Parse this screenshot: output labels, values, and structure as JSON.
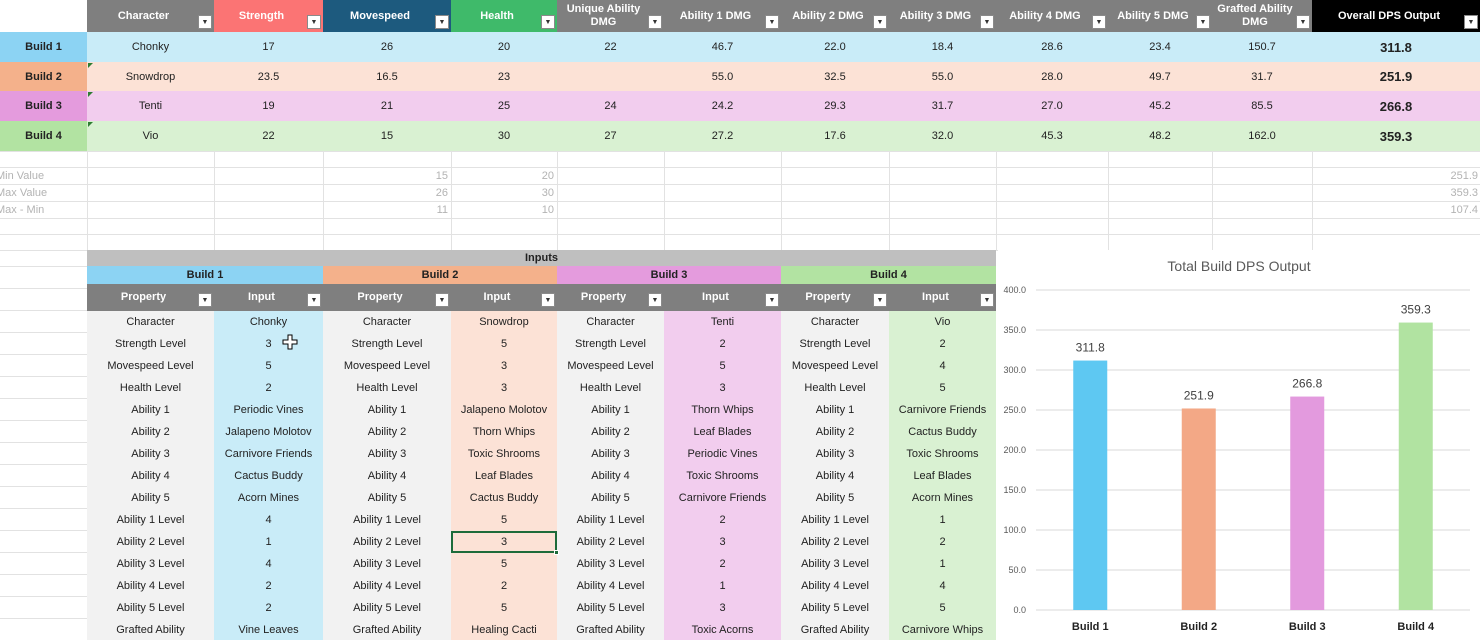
{
  "colors": {
    "build1": "#c9ecf8",
    "build1_label": "#8cd3f3",
    "build2": "#fce2d6",
    "build2_label": "#f4b18b",
    "build3": "#f2cdee",
    "build3_label": "#e49bdd",
    "build4": "#d9f1d2",
    "build4_label": "#b2e3a2",
    "hdr_gray": "#7f7f7f",
    "hdr_strength": "#fb7474",
    "hdr_movespeed": "#1d5a7e",
    "hdr_health": "#3fba6a",
    "hdr_overall": "#000000",
    "input_label_gray": "#f2f2f2",
    "inputs_band": "#bfbfbf",
    "bar1": "#5ec8f2",
    "bar2": "#f3a886",
    "bar3": "#e39ade",
    "bar4": "#b1e3a1"
  },
  "top_table": {
    "headers": [
      "Character",
      "Strength",
      "Movespeed",
      "Health",
      "Unique Ability DMG",
      "Ability 1 DMG",
      "Ability 2 DMG",
      "Ability 3 DMG",
      "Ability 4 DMG",
      "Ability 5 DMG",
      "Grafted Ability DMG",
      "Overall DPS Output"
    ],
    "rows": [
      {
        "label": "Build 1",
        "cells": [
          "Chonky",
          "17",
          "26",
          "20",
          "22",
          "46.7",
          "22.0",
          "18.4",
          "28.6",
          "23.4",
          "150.7",
          "311.8"
        ]
      },
      {
        "label": "Build 2",
        "cells": [
          "Snowdrop",
          "23.5",
          "16.5",
          "23",
          "",
          "55.0",
          "32.5",
          "55.0",
          "28.0",
          "49.7",
          "31.7",
          "251.9"
        ]
      },
      {
        "label": "Build 3",
        "cells": [
          "Tenti",
          "19",
          "21",
          "25",
          "24",
          "24.2",
          "29.3",
          "31.7",
          "27.0",
          "45.2",
          "85.5",
          "266.8"
        ]
      },
      {
        "label": "Build 4",
        "cells": [
          "Vio",
          "22",
          "15",
          "30",
          "27",
          "27.2",
          "17.6",
          "32.0",
          "45.3",
          "48.2",
          "162.0",
          "359.3"
        ]
      }
    ]
  },
  "stats": {
    "rows": [
      {
        "label": "Min Value",
        "movespeed": "15",
        "health": "20",
        "overall": "251.9"
      },
      {
        "label": "Max Value",
        "movespeed": "26",
        "health": "30",
        "overall": "359.3"
      },
      {
        "label": "Max - Min",
        "movespeed": "11",
        "health": "10",
        "overall": "107.4"
      }
    ]
  },
  "inputs": {
    "title": "Inputs",
    "builds": [
      "Build 1",
      "Build 2",
      "Build 3",
      "Build 4"
    ],
    "property_header": "Property",
    "input_header": "Input",
    "properties": [
      "Character",
      "Strength Level",
      "Movespeed Level",
      "Health Level",
      "Ability 1",
      "Ability 2",
      "Ability 3",
      "Ability 4",
      "Ability 5",
      "Ability 1 Level",
      "Ability 2 Level",
      "Ability 3 Level",
      "Ability 4 Level",
      "Ability 5 Level",
      "Grafted Ability"
    ],
    "values": [
      [
        "Chonky",
        "3",
        "5",
        "2",
        "Periodic Vines",
        "Jalapeno Molotov",
        "Carnivore Friends",
        "Cactus Buddy",
        "Acorn Mines",
        "4",
        "1",
        "4",
        "2",
        "2",
        "Vine Leaves"
      ],
      [
        "Snowdrop",
        "5",
        "3",
        "3",
        "Jalapeno Molotov",
        "Thorn Whips",
        "Toxic Shrooms",
        "Leaf Blades",
        "Cactus Buddy",
        "5",
        "3",
        "5",
        "2",
        "5",
        "Healing Cacti"
      ],
      [
        "Tenti",
        "2",
        "5",
        "3",
        "Thorn Whips",
        "Leaf Blades",
        "Periodic Vines",
        "Toxic Shrooms",
        "Carnivore Friends",
        "2",
        "3",
        "2",
        "1",
        "3",
        "Toxic Acorns"
      ],
      [
        "Vio",
        "2",
        "4",
        "5",
        "Carnivore Friends",
        "Cactus Buddy",
        "Toxic Shrooms",
        "Leaf Blades",
        "Acorn Mines",
        "1",
        "2",
        "1",
        "4",
        "5",
        "Carnivore Whips"
      ]
    ]
  },
  "chart_data": {
    "type": "bar",
    "title": "Total Build DPS Output",
    "categories": [
      "Build 1",
      "Build 2",
      "Build 3",
      "Build 4"
    ],
    "values": [
      311.8,
      251.9,
      266.8,
      359.3
    ],
    "data_labels": [
      "311.8",
      "251.9",
      "266.8",
      "359.3"
    ],
    "ylim": [
      0,
      400
    ],
    "yticks": [
      "0.0",
      "50.0",
      "100.0",
      "150.0",
      "200.0",
      "250.0",
      "300.0",
      "350.0",
      "400.0"
    ],
    "grid": true,
    "xlabel": "",
    "ylabel": "",
    "colors": [
      "#5ec8f2",
      "#f3a886",
      "#e39ade",
      "#b1e3a1"
    ]
  },
  "icons": {
    "filter": "filter-dropdown-icon",
    "cursor": "cross-cursor-icon"
  }
}
